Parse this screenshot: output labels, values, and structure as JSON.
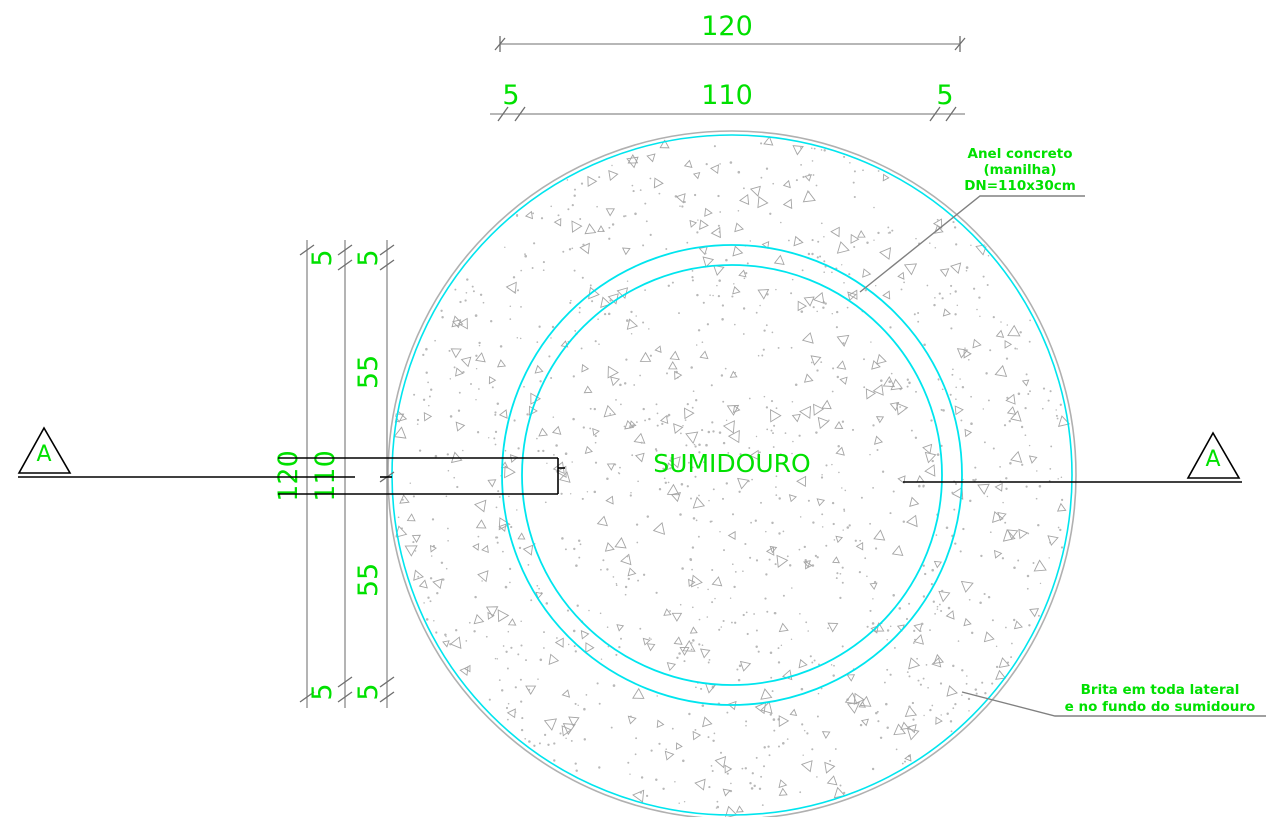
{
  "drawing": {
    "title": "SUMIDOURO",
    "section_mark_left": "A",
    "section_mark_right": "A",
    "colors": {
      "dimension_text": "#00e000",
      "concrete_ring": "#00e5ee",
      "outer_line": "#b0b0b0",
      "section_line": "#000000"
    }
  },
  "dimensions": {
    "top_total": "120",
    "top_left_wall": "5",
    "top_inner": "110",
    "top_right_wall": "5",
    "left_total": "120",
    "left_inner": "110",
    "left_top_wall_a": "5",
    "left_top_wall_b": "5",
    "left_upper_half": "55",
    "left_lower_half": "55",
    "left_bottom_wall_a": "5",
    "left_bottom_wall_b": "5"
  },
  "labels": {
    "ring": [
      "Anel concreto",
      "(manilha)",
      "DN=110x30cm"
    ],
    "gravel": [
      "Brita em toda lateral",
      "e no fundo do sumidouro"
    ]
  }
}
